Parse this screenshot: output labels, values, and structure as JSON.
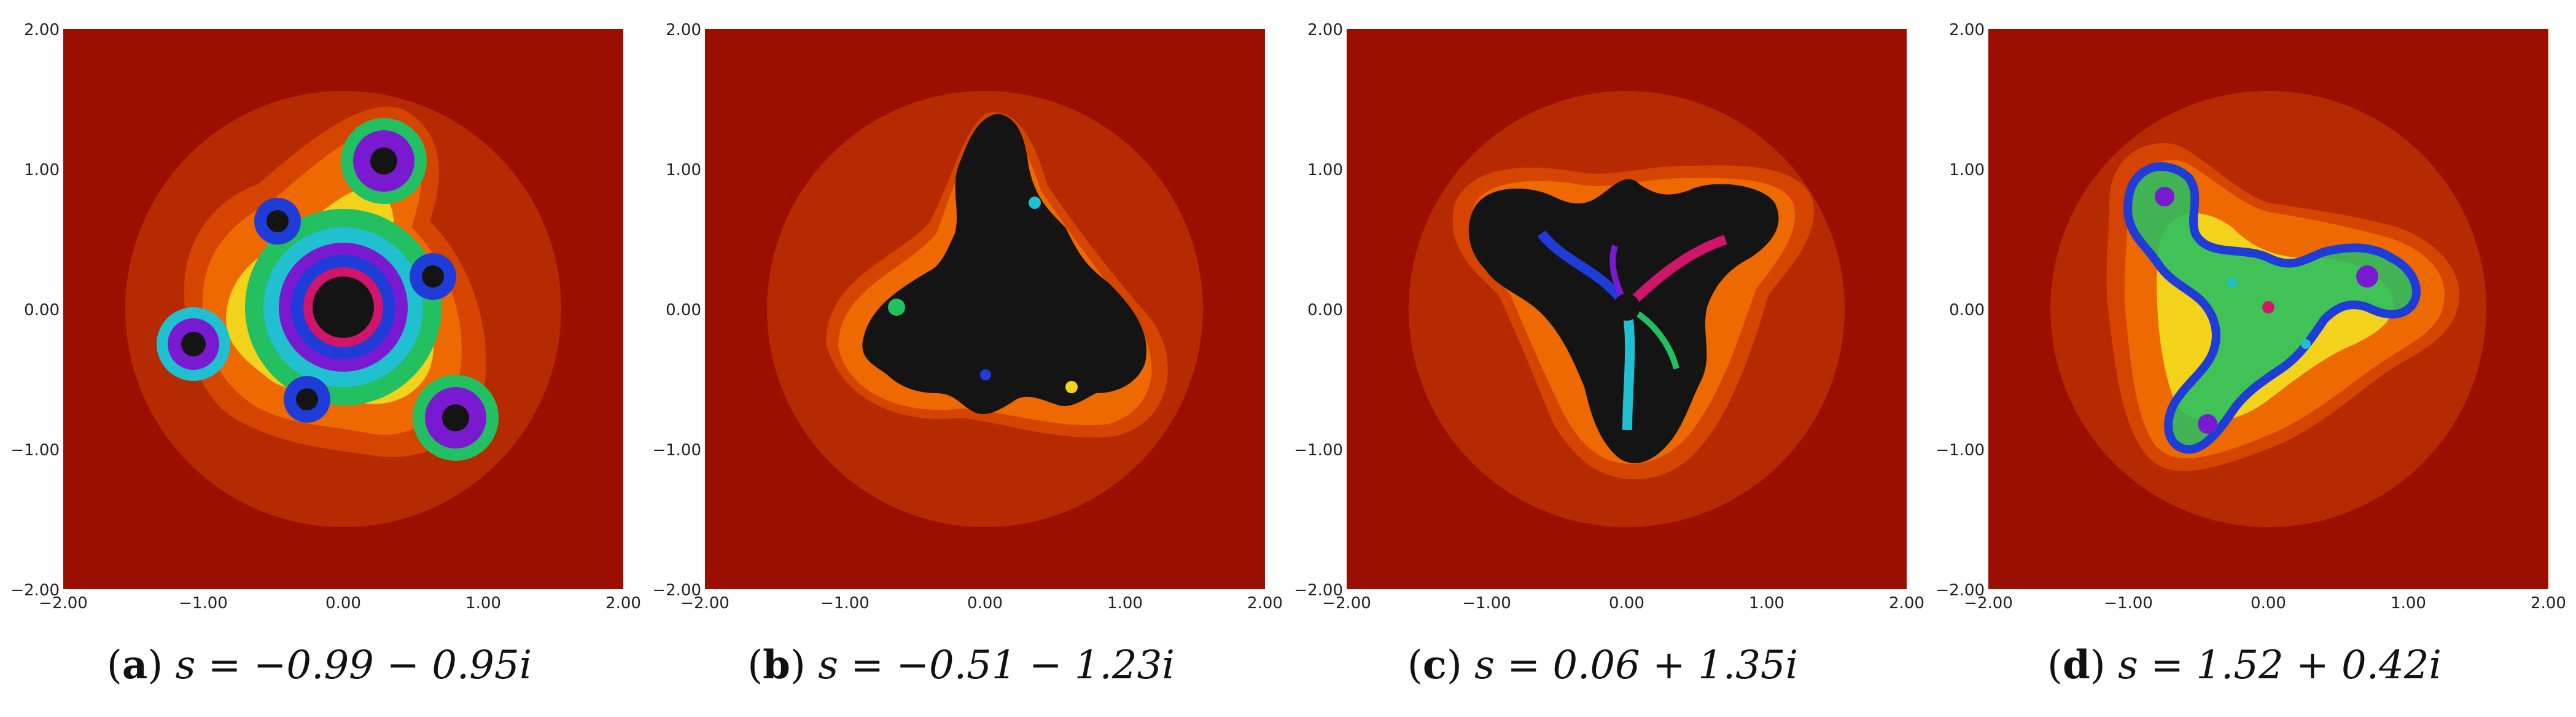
{
  "figure": {
    "panels": [
      {
        "label": "a",
        "equation": "s = −0.99 − 0.95i"
      },
      {
        "label": "b",
        "equation": "s = −0.51 − 1.23i"
      },
      {
        "label": "c",
        "equation": "s = 0.06 + 1.35i"
      },
      {
        "label": "d",
        "equation": "s = 1.52 + 0.42i"
      }
    ],
    "axis": {
      "x_ticks": [
        "−2.00",
        "−1.00",
        "0.00",
        "1.00",
        "2.00"
      ],
      "y_ticks": [
        "2.00",
        "1.00",
        "0.00",
        "−1.00",
        "−2.00"
      ],
      "range": [
        -2,
        2
      ]
    },
    "colors": {
      "background": "#9b0f00",
      "escape_band_1": "#b52a00",
      "escape_band_2": "#d54500",
      "escape_band_3": "#ee6a00",
      "escape_band_4": "#ff8c00",
      "yellow": "#f2d21b",
      "interior": "#141414",
      "palette": [
        "#1f3bd8",
        "#20c0d0",
        "#22c060",
        "#7a1ad0",
        "#d0156a"
      ]
    }
  }
}
